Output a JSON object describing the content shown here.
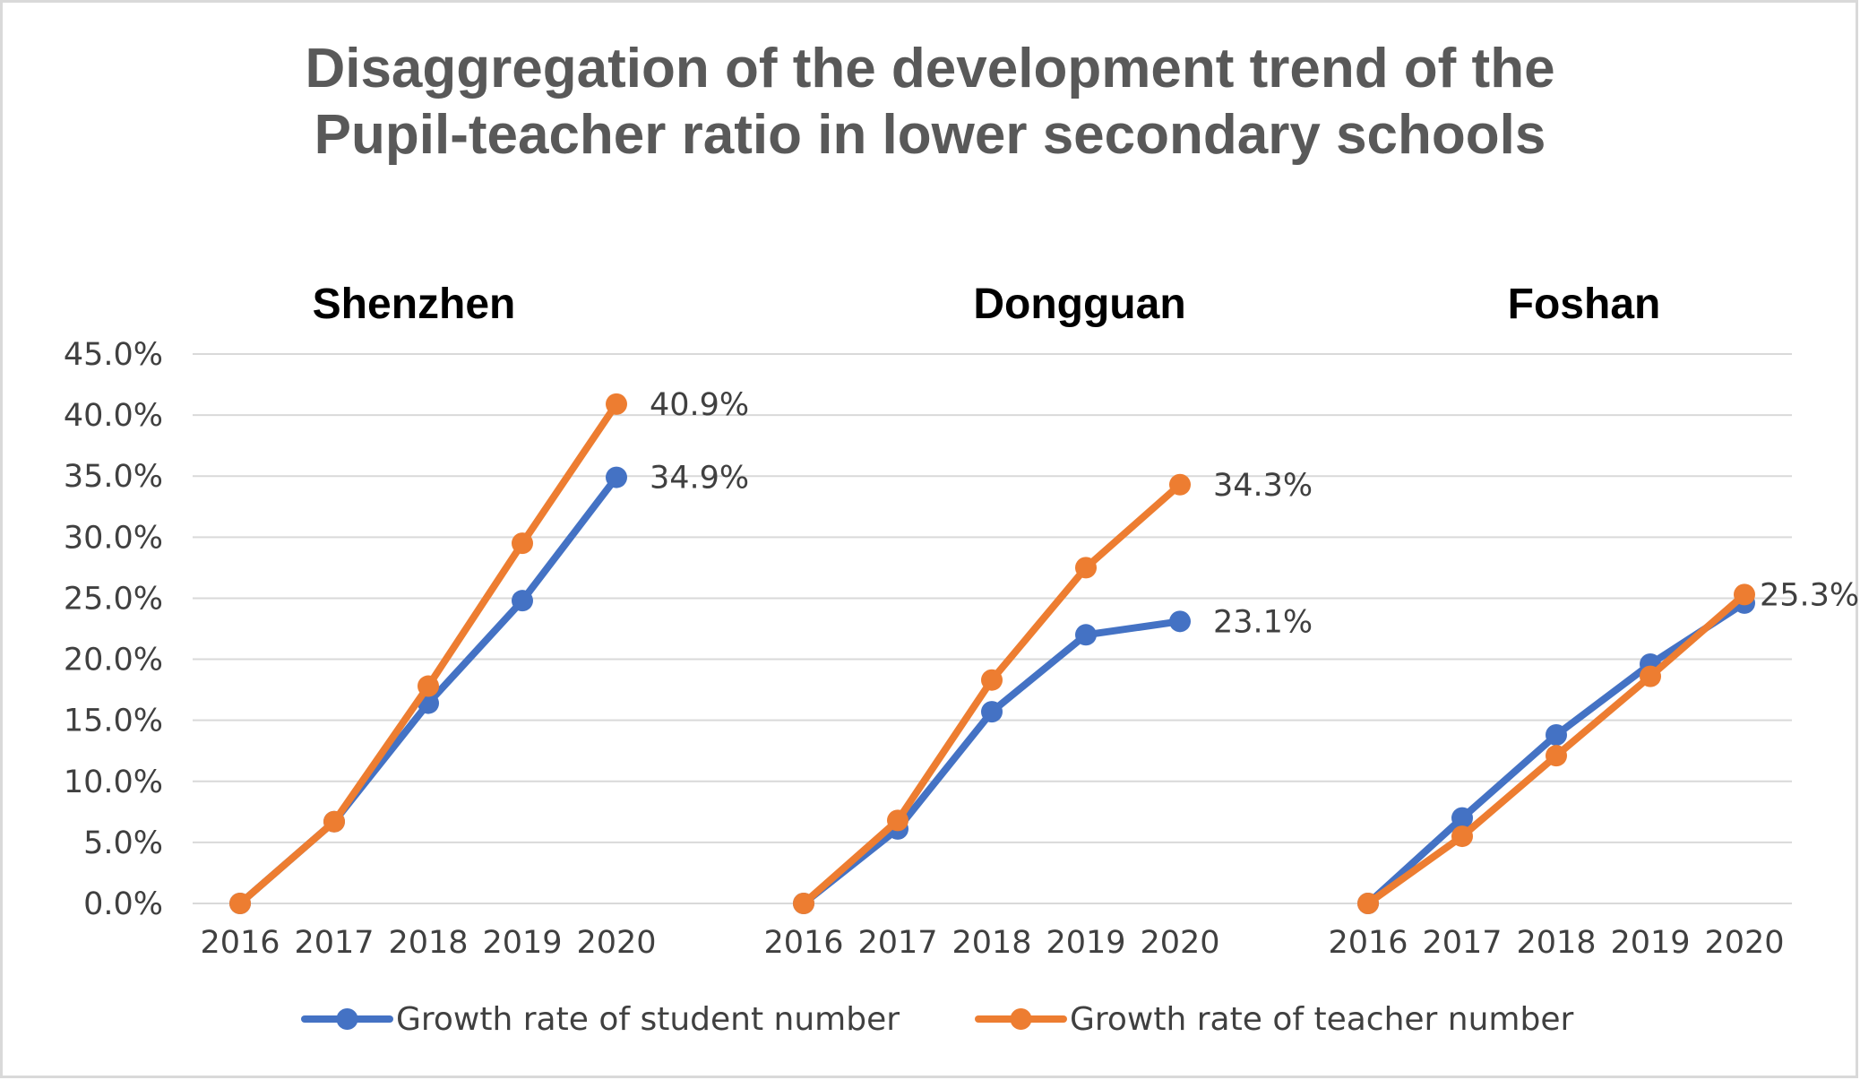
{
  "chart_title": {
    "line1": "Disaggregation of the development trend of the",
    "line2": "Pupil-teacher ratio in lower secondary schools"
  },
  "colors": {
    "student": "#4472C4",
    "teacher": "#ED7D31",
    "grid": "#d9d9d9"
  },
  "chart_data": {
    "type": "line",
    "ylim": [
      0,
      45
    ],
    "yticks": [
      "0.0%",
      "5.0%",
      "10.0%",
      "15.0%",
      "20.0%",
      "25.0%",
      "30.0%",
      "35.0%",
      "40.0%",
      "45.0%"
    ],
    "legend_position": "bottom",
    "grid": true,
    "panels": [
      {
        "name": "Shenzhen",
        "categories": [
          "2016",
          "2017",
          "2018",
          "2019",
          "2020"
        ],
        "series": [
          {
            "name": "Growth rate of student number",
            "values": [
              0.0,
              6.7,
              16.4,
              24.8,
              34.9
            ],
            "label": "34.9%"
          },
          {
            "name": "Growth rate of teacher number",
            "values": [
              0.0,
              6.7,
              17.8,
              29.5,
              40.9
            ],
            "label": "40.9%"
          }
        ]
      },
      {
        "name": "Dongguan",
        "categories": [
          "2016",
          "2017",
          "2018",
          "2019",
          "2020"
        ],
        "series": [
          {
            "name": "Growth rate of student number",
            "values": [
              0.0,
              6.1,
              15.7,
              22.0,
              23.1
            ],
            "label": "23.1%"
          },
          {
            "name": "Growth rate of teacher number",
            "values": [
              0.0,
              6.8,
              18.3,
              27.5,
              34.3
            ],
            "label": "34.3%"
          }
        ]
      },
      {
        "name": "Foshan",
        "categories": [
          "2016",
          "2017",
          "2018",
          "2019",
          "2020"
        ],
        "series": [
          {
            "name": "Growth rate of student number",
            "values": [
              0.0,
              7.0,
              13.8,
              19.6,
              24.6
            ],
            "label": ""
          },
          {
            "name": "Growth rate of teacher number",
            "values": [
              0.0,
              5.5,
              12.1,
              18.6,
              25.3
            ],
            "label": "25.3%"
          }
        ]
      }
    ]
  }
}
